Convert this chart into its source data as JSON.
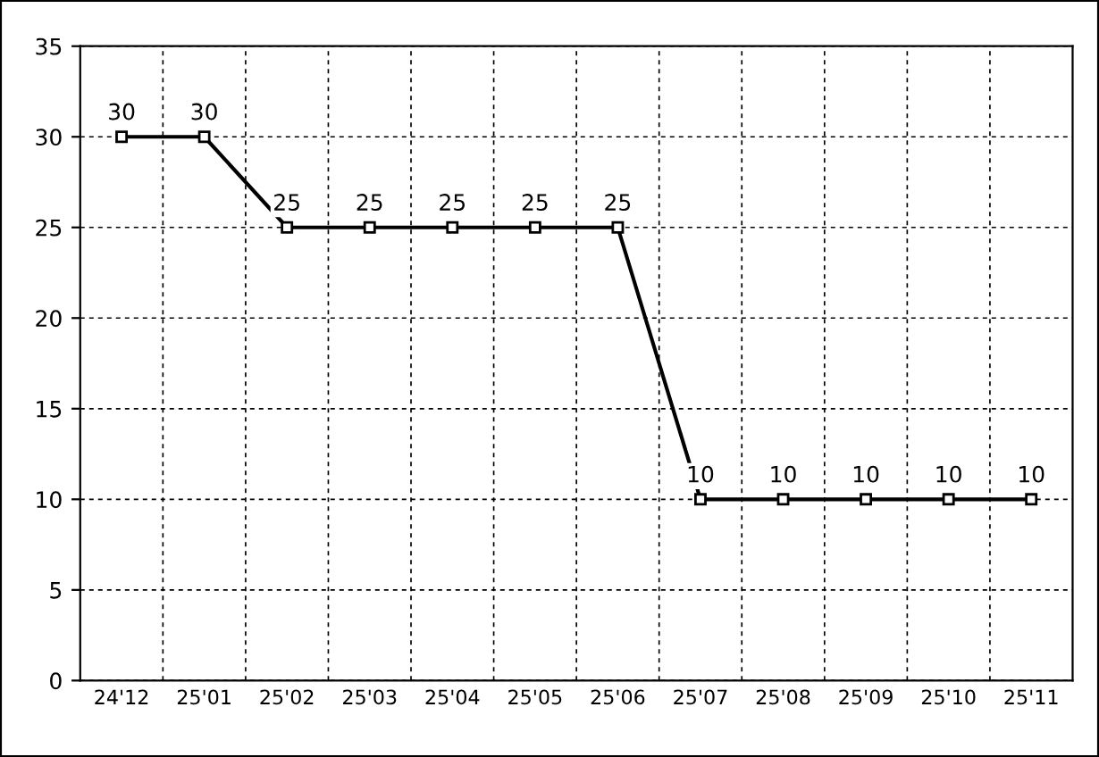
{
  "chart_data": {
    "type": "line",
    "categories": [
      "24'12",
      "25'01",
      "25'02",
      "25'03",
      "25'04",
      "25'05",
      "25'06",
      "25'07",
      "25'08",
      "25'09",
      "25'10",
      "25'11"
    ],
    "series": [
      {
        "color": "#000000",
        "values": [
          30,
          30,
          25,
          25,
          25,
          25,
          25,
          10,
          10,
          10,
          10,
          10
        ]
      }
    ],
    "ylim": [
      0,
      35
    ],
    "yticks": [
      0,
      5,
      10,
      15,
      20,
      25,
      30,
      35
    ],
    "grid": true,
    "marker": "square",
    "line_style": "solid",
    "data_labels": true,
    "legend": false
  }
}
